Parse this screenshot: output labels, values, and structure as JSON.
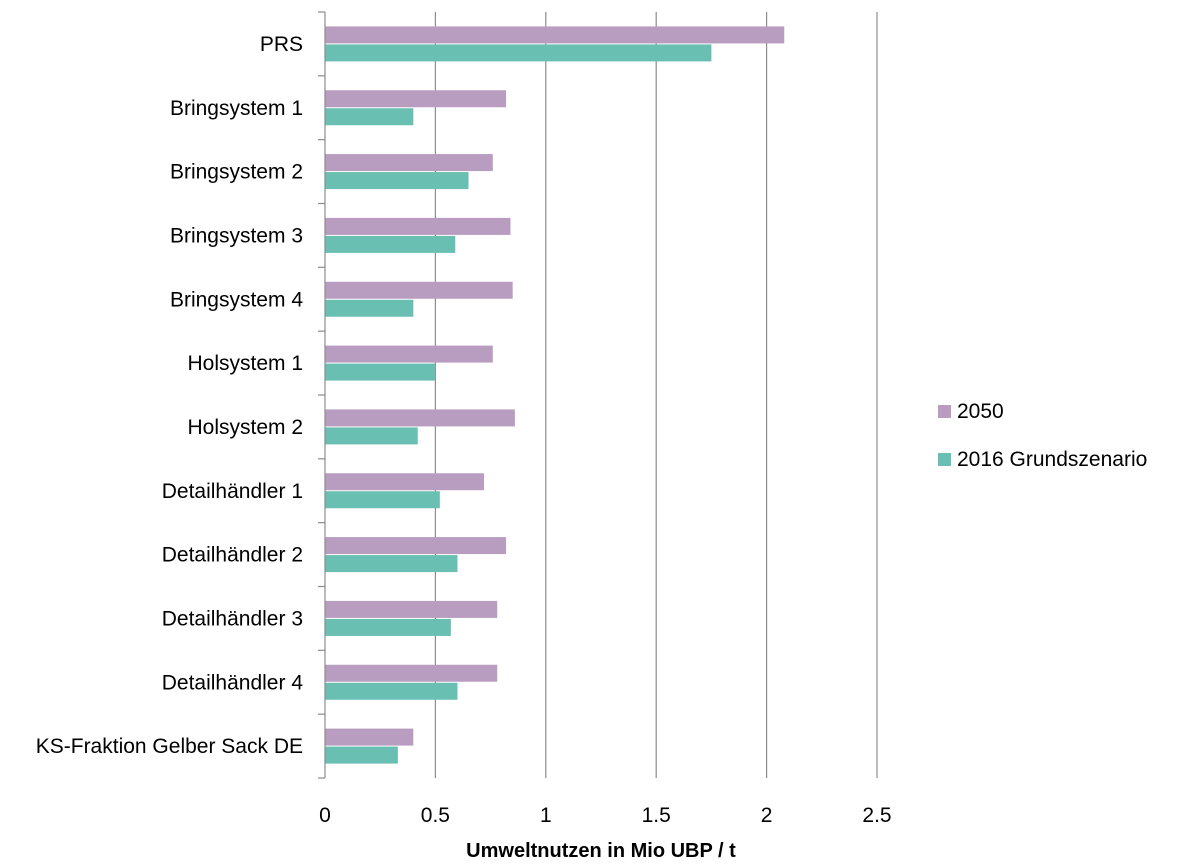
{
  "chart_data": {
    "type": "bar",
    "orientation": "horizontal",
    "categories": [
      "PRS",
      "Bringsystem 1",
      "Bringsystem 2",
      "Bringsystem 3",
      "Bringsystem 4",
      "Holsystem 1",
      "Holsystem 2",
      "Detailhändler 1",
      "Detailhändler 2",
      "Detailhändler 3",
      "Detailhändler 4",
      "KS-Fraktion Gelber Sack DE"
    ],
    "series": [
      {
        "name": "2050",
        "color": "#b99dc1",
        "values": [
          2.08,
          0.82,
          0.76,
          0.84,
          0.85,
          0.76,
          0.86,
          0.72,
          0.82,
          0.78,
          0.78,
          0.4
        ]
      },
      {
        "name": "2016 Grundszenario",
        "color": "#69bfb1",
        "values": [
          1.75,
          0.4,
          0.65,
          0.59,
          0.4,
          0.5,
          0.42,
          0.52,
          0.6,
          0.57,
          0.6,
          0.33
        ]
      }
    ],
    "xlabel": "Umweltnutzen in Mio UBP / t",
    "ylabel": "",
    "xlim": [
      0,
      2.5
    ],
    "xticks": [
      "0",
      "0.5",
      "1",
      "1.5",
      "2",
      "2.5"
    ],
    "grid": true,
    "legend_position": "right"
  }
}
